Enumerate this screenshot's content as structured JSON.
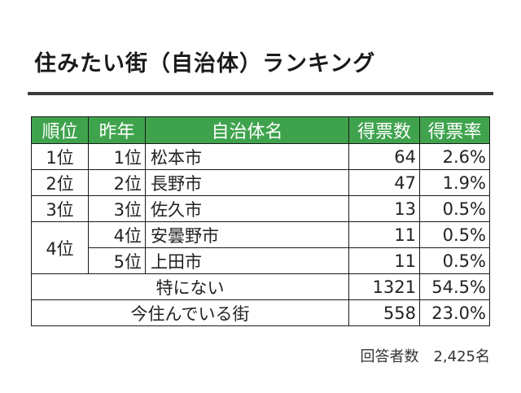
{
  "title": "住みたい街（自治体）ランキング",
  "header": {
    "rank": "順位",
    "prev_rank": "昨年",
    "municipality": "自治体名",
    "votes": "得票数",
    "vote_rate": "得票率"
  },
  "rows": [
    {
      "rank": "1位",
      "prev": "1位",
      "name": "松本市",
      "votes": "64",
      "rate": "2.6%"
    },
    {
      "rank": "2位",
      "prev": "2位",
      "name": "長野市",
      "votes": "47",
      "rate": "1.9%"
    },
    {
      "rank": "3位",
      "prev": "3位",
      "name": "佐久市",
      "votes": "13",
      "rate": "0.5%"
    },
    {
      "rank": "4位",
      "prev": "4位",
      "name": "安曇野市",
      "votes": "11",
      "rate": "0.5%"
    },
    {
      "prev": "5位",
      "name": "上田市",
      "votes": "11",
      "rate": "0.5%"
    }
  ],
  "extra_rows": [
    {
      "label": "特にない",
      "votes": "1321",
      "rate": "54.5%"
    },
    {
      "label": "今住んでいる街",
      "votes": "558",
      "rate": "23.0%"
    }
  ],
  "footer": "回答者数　2,425名",
  "colors": {
    "header_bg": "#3fa34d",
    "header_text": "#ffffff",
    "rule": "#3a3a3a"
  }
}
